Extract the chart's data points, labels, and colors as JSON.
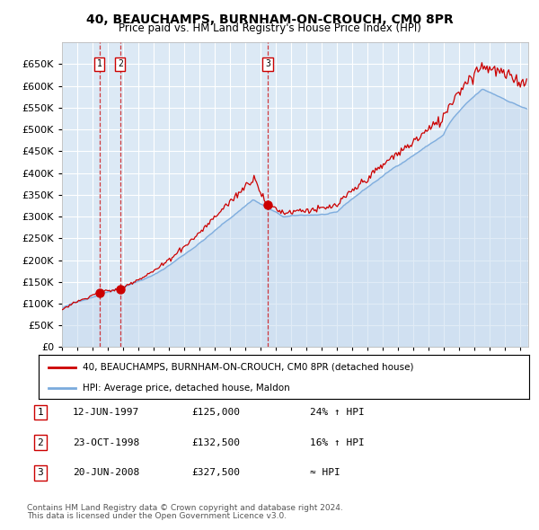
{
  "title": "40, BEAUCHAMPS, BURNHAM-ON-CROUCH, CM0 8PR",
  "subtitle": "Price paid vs. HM Land Registry's House Price Index (HPI)",
  "ylim": [
    0,
    700000
  ],
  "yticks": [
    0,
    50000,
    100000,
    150000,
    200000,
    250000,
    300000,
    350000,
    400000,
    450000,
    500000,
    550000,
    600000,
    650000
  ],
  "bg_color": "#dce9f5",
  "grid_color": "#ffffff",
  "hpi_color": "#7aaadd",
  "hpi_fill_color": "#c5d9ee",
  "price_color": "#cc0000",
  "fig_bg_color": "#ffffff",
  "legend_label_price": "40, BEAUCHAMPS, BURNHAM-ON-CROUCH, CM0 8PR (detached house)",
  "legend_label_hpi": "HPI: Average price, detached house, Maldon",
  "transactions": [
    {
      "num": 1,
      "date_str": "12-JUN-1997",
      "price": 125000,
      "pct": "24%",
      "dir": "↑",
      "x_year": 1997.45
    },
    {
      "num": 2,
      "date_str": "23-OCT-1998",
      "price": 132500,
      "pct": "16%",
      "dir": "↑",
      "x_year": 1998.81
    },
    {
      "num": 3,
      "date_str": "20-JUN-2008",
      "price": 327500,
      "pct": "≈",
      "dir": "",
      "x_year": 2008.46
    }
  ],
  "footnote1": "Contains HM Land Registry data © Crown copyright and database right 2024.",
  "footnote2": "This data is licensed under the Open Government Licence v3.0.",
  "xmin": 1995.0,
  "xmax": 2025.5
}
